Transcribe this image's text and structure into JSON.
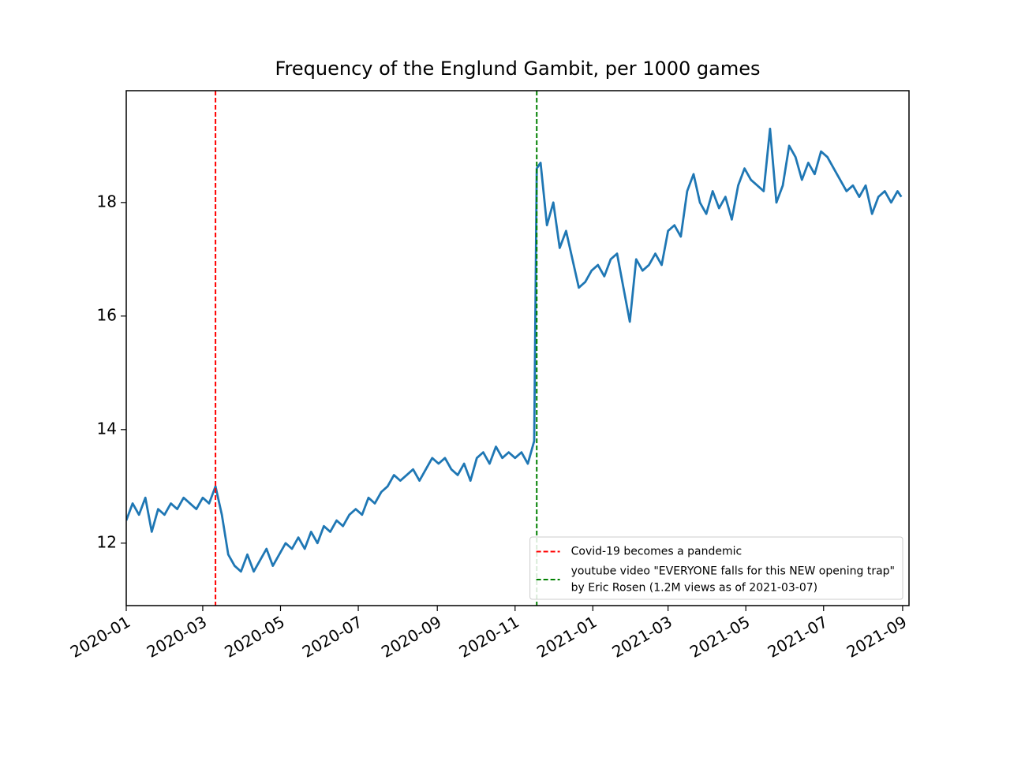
{
  "chart_data": {
    "type": "line",
    "title": "Frequency of the Englund Gambit, per 1000 games",
    "x": [
      "2020-01-01",
      "2020-01-06",
      "2020-01-11",
      "2020-01-16",
      "2020-01-21",
      "2020-01-26",
      "2020-01-31",
      "2020-02-05",
      "2020-02-10",
      "2020-02-15",
      "2020-02-20",
      "2020-02-25",
      "2020-03-01",
      "2020-03-06",
      "2020-03-11",
      "2020-03-16",
      "2020-03-21",
      "2020-03-26",
      "2020-03-31",
      "2020-04-05",
      "2020-04-10",
      "2020-04-15",
      "2020-04-20",
      "2020-04-25",
      "2020-04-30",
      "2020-05-05",
      "2020-05-10",
      "2020-05-15",
      "2020-05-20",
      "2020-05-25",
      "2020-05-30",
      "2020-06-04",
      "2020-06-09",
      "2020-06-14",
      "2020-06-19",
      "2020-06-24",
      "2020-06-29",
      "2020-07-04",
      "2020-07-09",
      "2020-07-14",
      "2020-07-19",
      "2020-07-24",
      "2020-07-29",
      "2020-08-03",
      "2020-08-08",
      "2020-08-13",
      "2020-08-18",
      "2020-08-23",
      "2020-08-28",
      "2020-09-02",
      "2020-09-07",
      "2020-09-12",
      "2020-09-17",
      "2020-09-22",
      "2020-09-27",
      "2020-10-02",
      "2020-10-07",
      "2020-10-12",
      "2020-10-17",
      "2020-10-22",
      "2020-10-27",
      "2020-11-01",
      "2020-11-06",
      "2020-11-11",
      "2020-11-16",
      "2020-11-18",
      "2020-11-21",
      "2020-11-26",
      "2020-12-01",
      "2020-12-06",
      "2020-12-11",
      "2020-12-16",
      "2020-12-21",
      "2020-12-26",
      "2020-12-31",
      "2021-01-05",
      "2021-01-10",
      "2021-01-15",
      "2021-01-20",
      "2021-01-25",
      "2021-01-30",
      "2021-02-04",
      "2021-02-09",
      "2021-02-14",
      "2021-02-19",
      "2021-02-24",
      "2021-03-01",
      "2021-03-06",
      "2021-03-11",
      "2021-03-16",
      "2021-03-21",
      "2021-03-26",
      "2021-03-31",
      "2021-04-05",
      "2021-04-10",
      "2021-04-15",
      "2021-04-20",
      "2021-04-25",
      "2021-04-30",
      "2021-05-05",
      "2021-05-10",
      "2021-05-15",
      "2021-05-20",
      "2021-05-25",
      "2021-05-30",
      "2021-06-04",
      "2021-06-09",
      "2021-06-14",
      "2021-06-19",
      "2021-06-24",
      "2021-06-29",
      "2021-07-04",
      "2021-07-09",
      "2021-07-14",
      "2021-07-19",
      "2021-07-24",
      "2021-07-29",
      "2021-08-03",
      "2021-08-08",
      "2021-08-13",
      "2021-08-18",
      "2021-08-23",
      "2021-08-28",
      "2021-08-31"
    ],
    "series": [
      {
        "color": "#1f77b4",
        "values": [
          12.4,
          12.7,
          12.5,
          12.8,
          12.2,
          12.6,
          12.5,
          12.7,
          12.6,
          12.8,
          12.7,
          12.6,
          12.8,
          12.7,
          13.0,
          12.5,
          11.8,
          11.6,
          11.5,
          11.8,
          11.5,
          11.7,
          11.9,
          11.6,
          11.8,
          12.0,
          11.9,
          12.1,
          11.9,
          12.2,
          12.0,
          12.3,
          12.2,
          12.4,
          12.3,
          12.5,
          12.6,
          12.5,
          12.8,
          12.7,
          12.9,
          13.0,
          13.2,
          13.1,
          13.2,
          13.3,
          13.1,
          13.3,
          13.5,
          13.4,
          13.5,
          13.3,
          13.2,
          13.4,
          13.1,
          13.5,
          13.6,
          13.4,
          13.7,
          13.5,
          13.6,
          13.5,
          13.6,
          13.4,
          13.8,
          18.6,
          18.7,
          17.6,
          18.0,
          17.2,
          17.5,
          17.0,
          16.5,
          16.6,
          16.8,
          16.9,
          16.7,
          17.0,
          17.1,
          16.5,
          15.9,
          17.0,
          16.8,
          16.9,
          17.1,
          16.9,
          17.5,
          17.6,
          17.4,
          18.2,
          18.5,
          18.0,
          17.8,
          18.2,
          17.9,
          18.1,
          17.7,
          18.3,
          18.6,
          18.4,
          18.3,
          18.2,
          19.3,
          18.0,
          18.3,
          19.0,
          18.8,
          18.4,
          18.7,
          18.5,
          18.9,
          18.8,
          18.6,
          18.4,
          18.2,
          18.3,
          18.1,
          18.3,
          17.8,
          18.1,
          18.2,
          18.0,
          18.2,
          18.1
        ]
      }
    ],
    "xlim": [
      "2020-01-01",
      "2021-09-06"
    ],
    "xticks": [
      {
        "value": "2020-01-01",
        "label": "2020-01"
      },
      {
        "value": "2020-03-01",
        "label": "2020-03"
      },
      {
        "value": "2020-05-01",
        "label": "2020-05"
      },
      {
        "value": "2020-07-01",
        "label": "2020-07"
      },
      {
        "value": "2020-09-01",
        "label": "2020-09"
      },
      {
        "value": "2020-11-01",
        "label": "2020-11"
      },
      {
        "value": "2021-01-01",
        "label": "2021-01"
      },
      {
        "value": "2021-03-01",
        "label": "2021-03"
      },
      {
        "value": "2021-05-01",
        "label": "2021-05"
      },
      {
        "value": "2021-07-01",
        "label": "2021-07"
      },
      {
        "value": "2021-09-01",
        "label": "2021-09"
      }
    ],
    "ylim": [
      10.9,
      19.97
    ],
    "yticks": [
      12,
      14,
      16,
      18
    ],
    "vlines": [
      {
        "x": "2020-03-11",
        "color": "#ff0000",
        "label_lines": [
          "Covid-19 becomes a pandemic"
        ]
      },
      {
        "x": "2020-11-18",
        "color": "#008000",
        "label_lines": [
          "youtube video \"EVERYONE falls for this NEW opening trap\"",
          "by Eric Rosen (1.2M views as of 2021-03-07)"
        ]
      }
    ],
    "legend": "lower right"
  }
}
